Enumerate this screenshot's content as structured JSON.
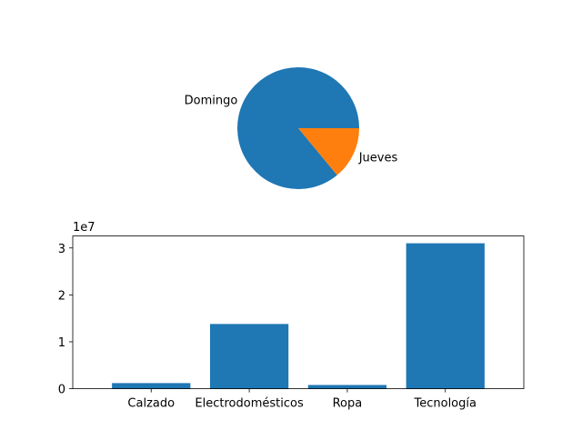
{
  "chart_data": [
    {
      "type": "pie",
      "labels": [
        "Domingo",
        "Jueves"
      ],
      "values": [
        86,
        14
      ],
      "colors": [
        "#1f77b4",
        "#ff7f0e"
      ]
    },
    {
      "type": "bar",
      "categories": [
        "Calzado",
        "Electrodomésticos",
        "Ropa",
        "Tecnología"
      ],
      "values": [
        1200000,
        13800000,
        800000,
        31000000
      ],
      "ylim": [
        0,
        32550000
      ],
      "yticks": [
        0,
        10000000,
        20000000,
        30000000
      ],
      "ytick_labels": [
        "0",
        "1",
        "2",
        "3"
      ],
      "offset_label": "1e7",
      "bar_color": "#1f77b4",
      "grid": false
    }
  ]
}
